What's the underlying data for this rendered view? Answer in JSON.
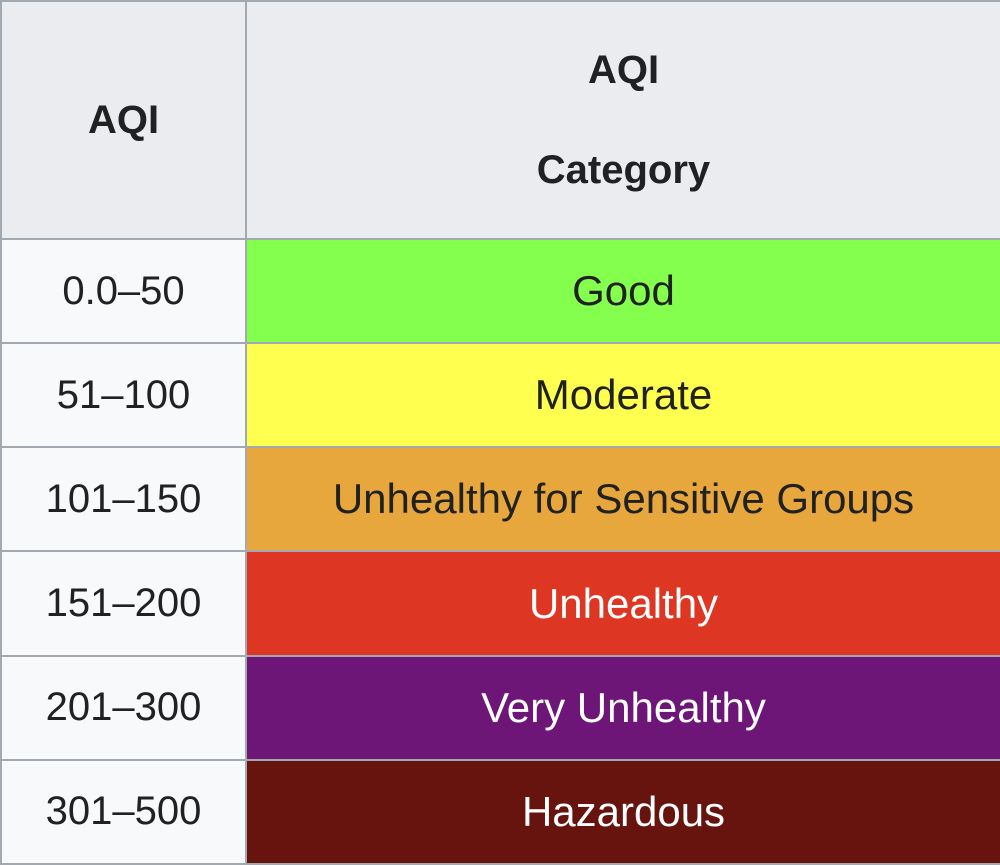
{
  "table": {
    "header": [
      "AQI",
      "AQI Category"
    ],
    "header_background": "#eaecf0",
    "first_column_background": "#f8f9fa",
    "border_color": "#a2a9b1",
    "rows": [
      {
        "range": "0.0–50",
        "category": "Good",
        "color": "#85ff4d",
        "text_color": "#202122"
      },
      {
        "range": "51–100",
        "category": "Moderate",
        "color": "#ffff50",
        "text_color": "#202122"
      },
      {
        "range": "101–150",
        "category": "Unhealthy for Sensitive Groups",
        "color": "#e8a73c",
        "text_color": "#202122"
      },
      {
        "range": "151–200",
        "category": "Unhealthy",
        "color": "#dd3622",
        "text_color": "#ffffff"
      },
      {
        "range": "201–300",
        "category": "Very Unhealthy",
        "color": "#6e1678",
        "text_color": "#ffffff"
      },
      {
        "range": "301–500",
        "category": "Hazardous",
        "color": "#67130e",
        "text_color": "#ffffff"
      }
    ]
  }
}
